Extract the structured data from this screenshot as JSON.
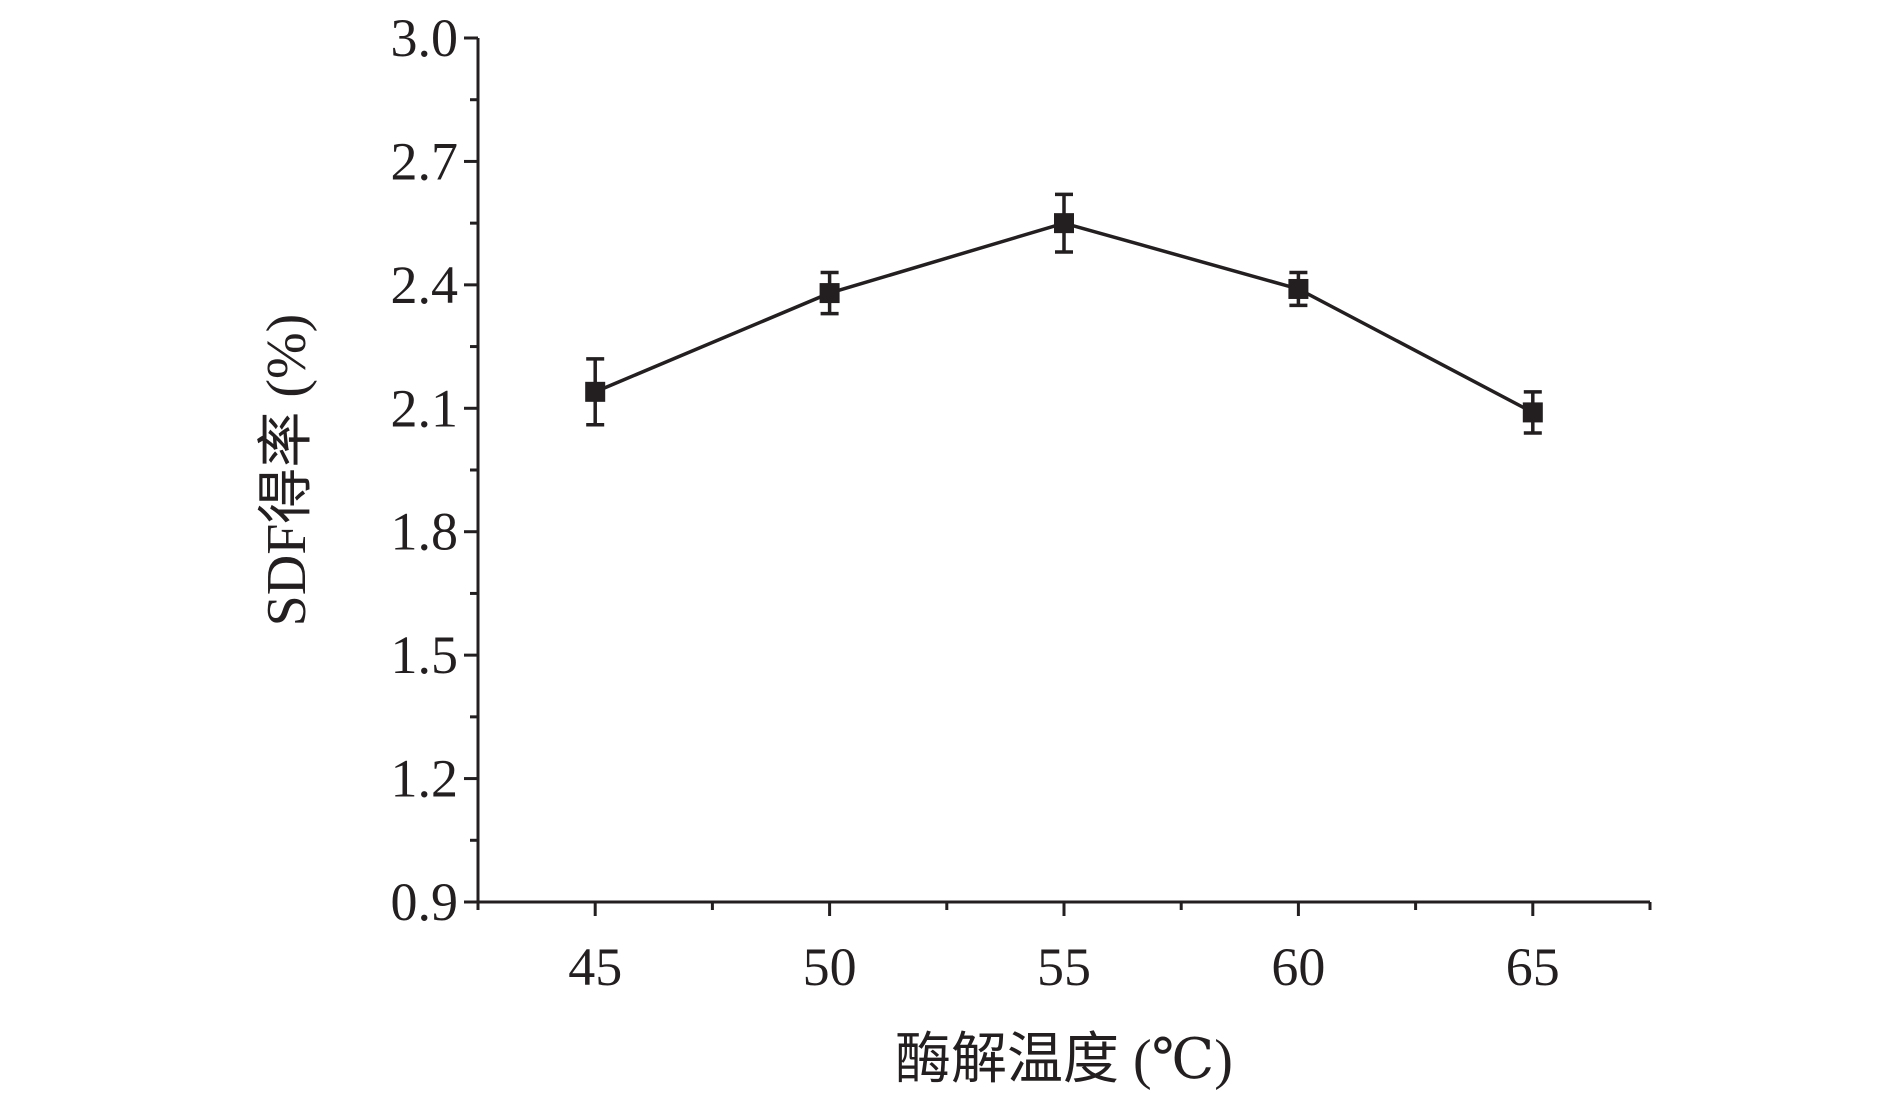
{
  "chart_data": {
    "type": "line",
    "title": "",
    "xlabel": "酶解温度 (℃)",
    "ylabel": "SDF得率 (%)",
    "x": [
      45,
      50,
      55,
      60,
      65
    ],
    "xticks": [
      "45",
      "50",
      "55",
      "60",
      "65"
    ],
    "xlim": [
      42.5,
      67.5
    ],
    "yticks": [
      "0.9",
      "1.2",
      "1.5",
      "1.8",
      "2.1",
      "2.4",
      "2.7",
      "3.0"
    ],
    "ylim": [
      0.9,
      3.0
    ],
    "grid": false,
    "legend": "none",
    "series": [
      {
        "values": [
          2.14,
          2.38,
          2.55,
          2.39,
          2.09
        ],
        "errors": [
          0.08,
          0.05,
          0.07,
          0.04,
          0.05
        ],
        "marker": "square",
        "color": "#231f20"
      }
    ]
  }
}
